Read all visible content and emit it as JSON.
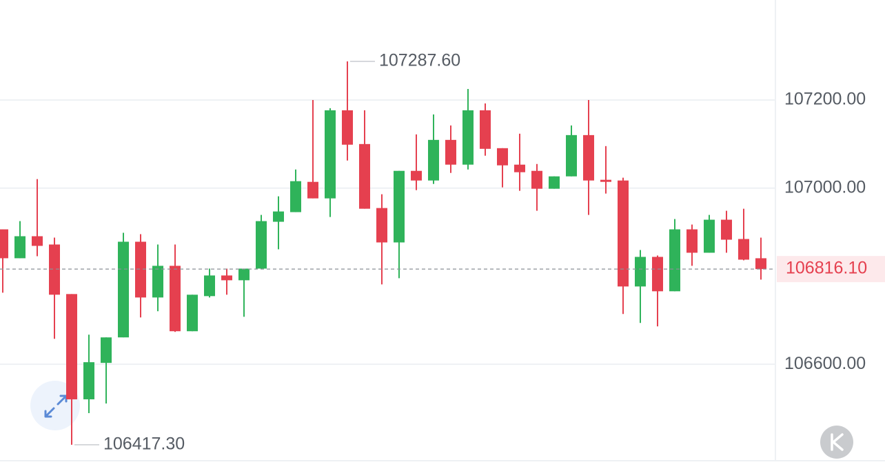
{
  "chart_data": {
    "type": "candlestick",
    "categories": [
      null,
      null,
      null,
      null,
      null,
      null,
      null,
      null,
      null,
      null,
      null,
      null,
      null,
      null,
      null,
      null,
      null,
      null,
      null,
      null,
      null,
      null,
      null,
      null,
      null,
      null,
      null,
      null,
      null,
      null,
      null,
      null,
      null,
      null,
      null,
      null,
      null,
      null,
      null,
      null,
      null,
      null,
      null,
      null,
      null
    ],
    "open": [
      106906.3,
      106840.7,
      106890.7,
      106871.9,
      106759.4,
      106520.4,
      106603.1,
      106661.0,
      106878.2,
      106751.6,
      106823.5,
      106675.0,
      106754.7,
      106801.6,
      106790.7,
      106817.2,
      106923.5,
      106945.4,
      107014.1,
      106976.6,
      107176.6,
      107100.0,
      106954.7,
      106876.6,
      107039.1,
      107017.2,
      107109.4,
      107053.2,
      107176.6,
      107090.6,
      107053.2,
      107039.1,
      106998.5,
      107026.6,
      107120.3,
      107018.8,
      107017.2,
      106776.6,
      106843.8,
      106765.7,
      106906.3,
      106853.2,
      106928.2,
      106884.4,
      106840.7
    ],
    "high": [
      106906.3,
      106925.0,
      107020.4,
      106887.5,
      106759.4,
      106667.2,
      106661.0,
      106898.5,
      106895.4,
      106871.9,
      106871.9,
      106757.9,
      106817.2,
      106817.2,
      106817.2,
      106939.1,
      106981.3,
      107042.2,
      107200.0,
      107181.3,
      107287.6,
      107176.6,
      106986.0,
      107039.1,
      107121.9,
      107167.2,
      107142.2,
      107225.0,
      107192.2,
      107090.6,
      107123.5,
      107054.7,
      107026.6,
      107142.2,
      107200.0,
      107095.3,
      107023.5,
      106859.4,
      106846.9,
      106929.7,
      106917.2,
      106939.1,
      106948.5,
      106953.1,
      106887.5
    ],
    "low": [
      106762.5,
      106840.7,
      106845.3,
      106657.8,
      106417.3,
      106489.1,
      106510.9,
      106661.0,
      106706.3,
      106720.4,
      106673.5,
      106675.0,
      106751.6,
      106757.9,
      106707.8,
      106817.2,
      106861.0,
      106945.4,
      106976.6,
      106934.4,
      107062.5,
      106953.1,
      106781.3,
      106795.3,
      106995.3,
      107009.4,
      107034.4,
      107042.2,
      107073.5,
      107001.6,
      106993.8,
      106948.5,
      106998.5,
      107026.6,
      106939.1,
      106987.5,
      106714.1,
      106693.8,
      106686.0,
      106765.7,
      106823.5,
      106853.2,
      106853.2,
      106836.0,
      106792.2
    ],
    "close": [
      106840.7,
      106890.7,
      106868.8,
      106757.9,
      106520.4,
      106604.7,
      106661.0,
      106878.2,
      106751.6,
      106823.5,
      106675.0,
      106757.9,
      106801.6,
      106790.7,
      106817.2,
      106925.0,
      106946.9,
      107015.7,
      106976.6,
      107176.6,
      107098.5,
      106953.1,
      106876.6,
      107039.1,
      107017.2,
      107109.4,
      107053.2,
      107176.6,
      107089.1,
      107051.6,
      107036.0,
      106998.5,
      107026.6,
      107120.3,
      107017.2,
      107014.1,
      106776.6,
      106843.8,
      106765.7,
      106906.3,
      106853.2,
      106928.2,
      106882.8,
      106837.5,
      106816.1
    ],
    "up_color": "#2fb35a",
    "down_color": "#e5404f",
    "ylim": [
      106381,
      107427
    ],
    "yticks": [
      {
        "value": 106600,
        "label": "106600.00"
      },
      {
        "value": 107000,
        "label": "107000.00"
      },
      {
        "value": 107200,
        "label": "107200.00"
      }
    ],
    "grid": true,
    "max_label": {
      "value": 107287.6,
      "label": "107287.60"
    },
    "min_label": {
      "value": 106417.3,
      "label": "106417.30"
    },
    "last_price": {
      "value": 106816.1,
      "label": "106816.10"
    }
  }
}
